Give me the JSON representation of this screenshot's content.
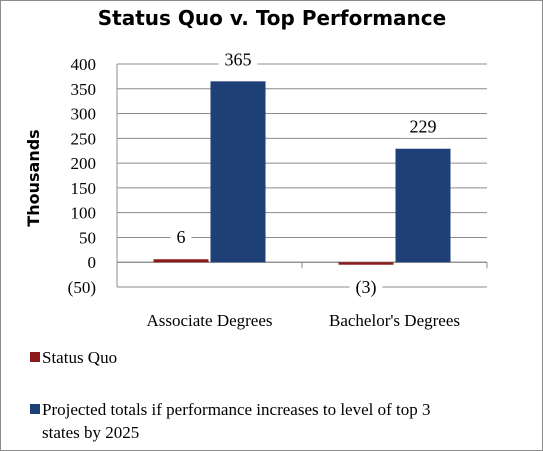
{
  "chart_data": {
    "type": "bar",
    "title": "Status Quo v. Top Performance",
    "ylabel": "Thousands",
    "xlabel": "",
    "categories": [
      "Associate Degrees",
      "Bachelor's Degrees"
    ],
    "ylim": [
      -50,
      400
    ],
    "yticks": [
      -50,
      0,
      50,
      100,
      150,
      200,
      250,
      300,
      350,
      400
    ],
    "ytick_labels": [
      "(50)",
      "0",
      "50",
      "100",
      "150",
      "200",
      "250",
      "300",
      "350",
      "400"
    ],
    "grid": true,
    "legend_position": "bottom",
    "series": [
      {
        "name": "Status Quo",
        "color": "#8b1a1a",
        "values": [
          6,
          -3
        ],
        "data_labels": [
          "6",
          "(3)"
        ]
      },
      {
        "name": "Projected totals if performance increases to level of top 3 states by 2025",
        "color": "#1f3f77",
        "values": [
          365,
          229
        ],
        "data_labels": [
          "365",
          "229"
        ]
      }
    ]
  }
}
